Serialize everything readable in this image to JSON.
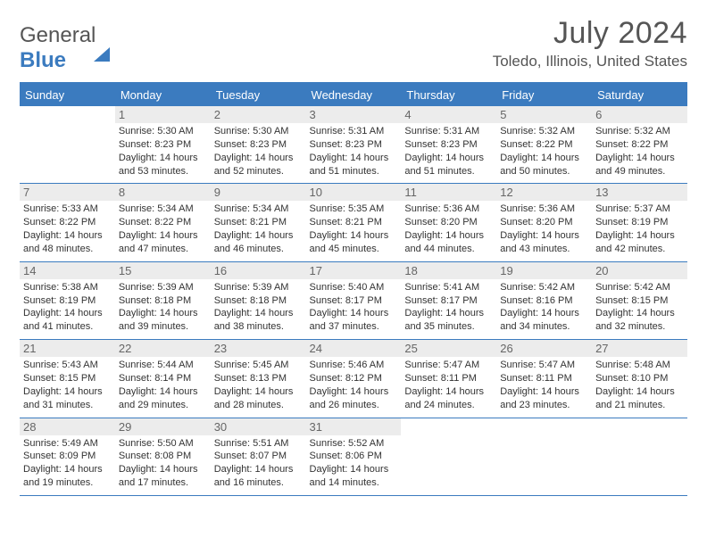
{
  "brand": {
    "part1": "General",
    "part2": "Blue"
  },
  "title": "July 2024",
  "location": "Toledo, Illinois, United States",
  "day_headers": [
    "Sunday",
    "Monday",
    "Tuesday",
    "Wednesday",
    "Thursday",
    "Friday",
    "Saturday"
  ],
  "colors": {
    "accent": "#3b7bbf",
    "daynum_bg": "#ececec",
    "text": "#333333",
    "heading": "#555555"
  },
  "typography": {
    "title_fontsize": 34,
    "location_fontsize": 17,
    "dayheader_fontsize": 13,
    "cell_fontsize": 11
  },
  "weeks": [
    [
      {
        "n": "",
        "empty": true
      },
      {
        "n": "1",
        "sr": "Sunrise: 5:30 AM",
        "ss": "Sunset: 8:23 PM",
        "d1": "Daylight: 14 hours",
        "d2": "and 53 minutes."
      },
      {
        "n": "2",
        "sr": "Sunrise: 5:30 AM",
        "ss": "Sunset: 8:23 PM",
        "d1": "Daylight: 14 hours",
        "d2": "and 52 minutes."
      },
      {
        "n": "3",
        "sr": "Sunrise: 5:31 AM",
        "ss": "Sunset: 8:23 PM",
        "d1": "Daylight: 14 hours",
        "d2": "and 51 minutes."
      },
      {
        "n": "4",
        "sr": "Sunrise: 5:31 AM",
        "ss": "Sunset: 8:23 PM",
        "d1": "Daylight: 14 hours",
        "d2": "and 51 minutes."
      },
      {
        "n": "5",
        "sr": "Sunrise: 5:32 AM",
        "ss": "Sunset: 8:22 PM",
        "d1": "Daylight: 14 hours",
        "d2": "and 50 minutes."
      },
      {
        "n": "6",
        "sr": "Sunrise: 5:32 AM",
        "ss": "Sunset: 8:22 PM",
        "d1": "Daylight: 14 hours",
        "d2": "and 49 minutes."
      }
    ],
    [
      {
        "n": "7",
        "sr": "Sunrise: 5:33 AM",
        "ss": "Sunset: 8:22 PM",
        "d1": "Daylight: 14 hours",
        "d2": "and 48 minutes."
      },
      {
        "n": "8",
        "sr": "Sunrise: 5:34 AM",
        "ss": "Sunset: 8:22 PM",
        "d1": "Daylight: 14 hours",
        "d2": "and 47 minutes."
      },
      {
        "n": "9",
        "sr": "Sunrise: 5:34 AM",
        "ss": "Sunset: 8:21 PM",
        "d1": "Daylight: 14 hours",
        "d2": "and 46 minutes."
      },
      {
        "n": "10",
        "sr": "Sunrise: 5:35 AM",
        "ss": "Sunset: 8:21 PM",
        "d1": "Daylight: 14 hours",
        "d2": "and 45 minutes."
      },
      {
        "n": "11",
        "sr": "Sunrise: 5:36 AM",
        "ss": "Sunset: 8:20 PM",
        "d1": "Daylight: 14 hours",
        "d2": "and 44 minutes."
      },
      {
        "n": "12",
        "sr": "Sunrise: 5:36 AM",
        "ss": "Sunset: 8:20 PM",
        "d1": "Daylight: 14 hours",
        "d2": "and 43 minutes."
      },
      {
        "n": "13",
        "sr": "Sunrise: 5:37 AM",
        "ss": "Sunset: 8:19 PM",
        "d1": "Daylight: 14 hours",
        "d2": "and 42 minutes."
      }
    ],
    [
      {
        "n": "14",
        "sr": "Sunrise: 5:38 AM",
        "ss": "Sunset: 8:19 PM",
        "d1": "Daylight: 14 hours",
        "d2": "and 41 minutes."
      },
      {
        "n": "15",
        "sr": "Sunrise: 5:39 AM",
        "ss": "Sunset: 8:18 PM",
        "d1": "Daylight: 14 hours",
        "d2": "and 39 minutes."
      },
      {
        "n": "16",
        "sr": "Sunrise: 5:39 AM",
        "ss": "Sunset: 8:18 PM",
        "d1": "Daylight: 14 hours",
        "d2": "and 38 minutes."
      },
      {
        "n": "17",
        "sr": "Sunrise: 5:40 AM",
        "ss": "Sunset: 8:17 PM",
        "d1": "Daylight: 14 hours",
        "d2": "and 37 minutes."
      },
      {
        "n": "18",
        "sr": "Sunrise: 5:41 AM",
        "ss": "Sunset: 8:17 PM",
        "d1": "Daylight: 14 hours",
        "d2": "and 35 minutes."
      },
      {
        "n": "19",
        "sr": "Sunrise: 5:42 AM",
        "ss": "Sunset: 8:16 PM",
        "d1": "Daylight: 14 hours",
        "d2": "and 34 minutes."
      },
      {
        "n": "20",
        "sr": "Sunrise: 5:42 AM",
        "ss": "Sunset: 8:15 PM",
        "d1": "Daylight: 14 hours",
        "d2": "and 32 minutes."
      }
    ],
    [
      {
        "n": "21",
        "sr": "Sunrise: 5:43 AM",
        "ss": "Sunset: 8:15 PM",
        "d1": "Daylight: 14 hours",
        "d2": "and 31 minutes."
      },
      {
        "n": "22",
        "sr": "Sunrise: 5:44 AM",
        "ss": "Sunset: 8:14 PM",
        "d1": "Daylight: 14 hours",
        "d2": "and 29 minutes."
      },
      {
        "n": "23",
        "sr": "Sunrise: 5:45 AM",
        "ss": "Sunset: 8:13 PM",
        "d1": "Daylight: 14 hours",
        "d2": "and 28 minutes."
      },
      {
        "n": "24",
        "sr": "Sunrise: 5:46 AM",
        "ss": "Sunset: 8:12 PM",
        "d1": "Daylight: 14 hours",
        "d2": "and 26 minutes."
      },
      {
        "n": "25",
        "sr": "Sunrise: 5:47 AM",
        "ss": "Sunset: 8:11 PM",
        "d1": "Daylight: 14 hours",
        "d2": "and 24 minutes."
      },
      {
        "n": "26",
        "sr": "Sunrise: 5:47 AM",
        "ss": "Sunset: 8:11 PM",
        "d1": "Daylight: 14 hours",
        "d2": "and 23 minutes."
      },
      {
        "n": "27",
        "sr": "Sunrise: 5:48 AM",
        "ss": "Sunset: 8:10 PM",
        "d1": "Daylight: 14 hours",
        "d2": "and 21 minutes."
      }
    ],
    [
      {
        "n": "28",
        "sr": "Sunrise: 5:49 AM",
        "ss": "Sunset: 8:09 PM",
        "d1": "Daylight: 14 hours",
        "d2": "and 19 minutes."
      },
      {
        "n": "29",
        "sr": "Sunrise: 5:50 AM",
        "ss": "Sunset: 8:08 PM",
        "d1": "Daylight: 14 hours",
        "d2": "and 17 minutes."
      },
      {
        "n": "30",
        "sr": "Sunrise: 5:51 AM",
        "ss": "Sunset: 8:07 PM",
        "d1": "Daylight: 14 hours",
        "d2": "and 16 minutes."
      },
      {
        "n": "31",
        "sr": "Sunrise: 5:52 AM",
        "ss": "Sunset: 8:06 PM",
        "d1": "Daylight: 14 hours",
        "d2": "and 14 minutes."
      },
      {
        "n": "",
        "empty": true
      },
      {
        "n": "",
        "empty": true
      },
      {
        "n": "",
        "empty": true
      }
    ]
  ]
}
